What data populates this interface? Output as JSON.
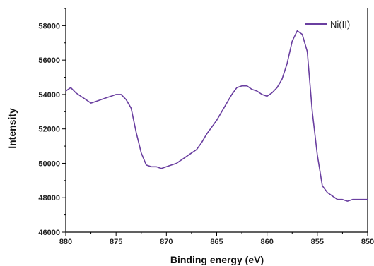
{
  "chart_data": {
    "type": "line",
    "xlabel": "Binding energy (eV)",
    "ylabel": "Intensity",
    "xlim": [
      880,
      850
    ],
    "ylim": [
      46000,
      59000
    ],
    "x_reversed": true,
    "x_ticks": [
      880,
      875,
      870,
      865,
      860,
      855,
      850
    ],
    "y_ticks": [
      46000,
      48000,
      50000,
      52000,
      54000,
      56000,
      58000
    ],
    "legend_position": "top-right",
    "grid": false,
    "series": [
      {
        "name": "Ni(II)",
        "color": "#6a3fa0",
        "x": [
          880,
          879.5,
          879,
          878.5,
          878,
          877.5,
          877,
          876.5,
          876,
          875.5,
          875,
          874.5,
          874,
          873.5,
          873,
          872.5,
          872,
          871.5,
          871,
          870.5,
          870,
          869.5,
          869,
          868.5,
          868,
          867.5,
          867,
          866.5,
          866,
          865.5,
          865,
          864.5,
          864,
          863.5,
          863,
          862.5,
          862,
          861.5,
          861,
          860.5,
          860,
          859.5,
          859,
          858.5,
          858,
          857.5,
          857,
          856.5,
          856,
          855.5,
          855,
          854.5,
          854,
          853.5,
          853,
          852.5,
          852,
          851.5,
          851,
          850.5,
          850
        ],
        "y": [
          54200,
          54400,
          54100,
          53900,
          53700,
          53500,
          53600,
          53700,
          53800,
          53900,
          54000,
          54000,
          53700,
          53200,
          51800,
          50600,
          49900,
          49800,
          49800,
          49700,
          49800,
          49900,
          50000,
          50200,
          50400,
          50600,
          50800,
          51200,
          51700,
          52100,
          52500,
          53000,
          53500,
          54000,
          54400,
          54500,
          54500,
          54300,
          54200,
          54000,
          53900,
          54100,
          54400,
          54900,
          55800,
          57100,
          57700,
          57500,
          56500,
          53000,
          50500,
          48700,
          48300,
          48100,
          47900,
          47900,
          47800,
          47900,
          47900,
          47900,
          47900
        ]
      }
    ]
  }
}
